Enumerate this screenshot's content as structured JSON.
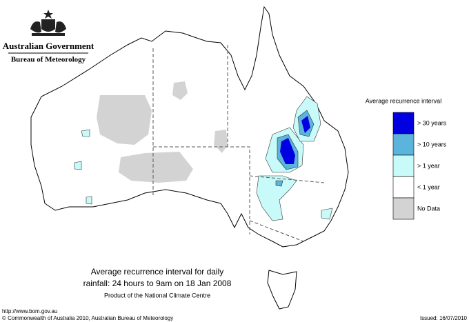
{
  "header": {
    "government": "Australian Government",
    "agency": "Bureau of Meteorology"
  },
  "legend": {
    "title": "Average recurrence interval",
    "items": [
      {
        "label": "> 30 years",
        "color": "#0000e0"
      },
      {
        "label": "> 10 years",
        "color": "#5ab4dc"
      },
      {
        "label": "> 1 year",
        "color": "#c8fafa"
      },
      {
        "label": "< 1 year",
        "color": "#ffffff"
      },
      {
        "label": "No Data",
        "color": "#d3d3d3"
      }
    ]
  },
  "caption": {
    "line1": "Average recurrence interval for daily",
    "line2": "rainfall: 24 hours to 9am on 18 Jan 2008",
    "line3": "Product of the National Climate Centre"
  },
  "footer": {
    "url": "http://www.bom.gov.au",
    "copyright": "© Commonwealth of Australia 2010, Australian Bureau of Meteorology",
    "issued": "Issued: 16/07/2010"
  }
}
